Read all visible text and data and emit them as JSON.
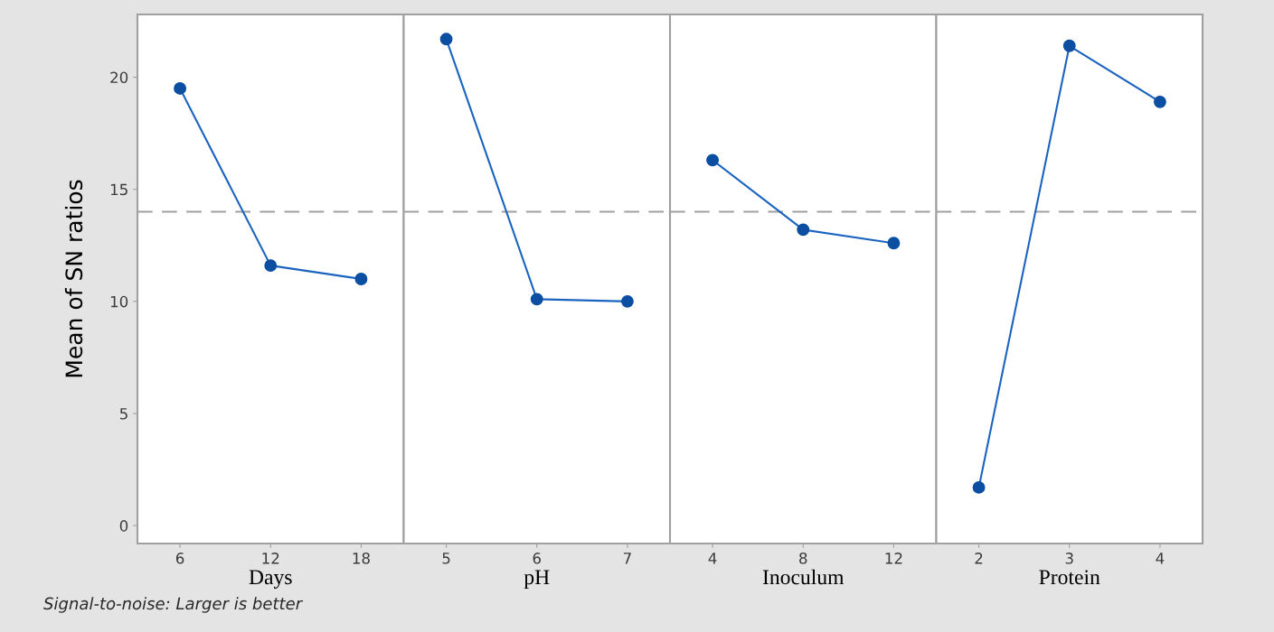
{
  "chart_data": [
    {
      "type": "line",
      "xlabel": "Days",
      "ylabel": "Mean of SN ratios",
      "categories": [
        "6",
        "12",
        "18"
      ],
      "series": [
        {
          "color": "#1a64c0",
          "values": [
            19.5,
            11.6,
            11.0
          ]
        }
      ],
      "ylim": [
        -0.8,
        22.8
      ],
      "yticks": [
        0,
        5,
        10,
        15,
        20
      ],
      "ref_lines": [
        {
          "axis": "y",
          "value": 14.0,
          "color": "#a0a0a0",
          "line_style": "dashed"
        }
      ],
      "marker": "circle",
      "grid": false,
      "annotations": [
        "Signal-to-noise: Larger is better"
      ]
    },
    {
      "type": "line",
      "xlabel": "pH",
      "categories": [
        "5",
        "6",
        "7"
      ],
      "series": [
        {
          "color": "#1a64c0",
          "values": [
            21.7,
            10.1,
            10.0
          ]
        }
      ],
      "ylim": [
        -0.8,
        22.8
      ],
      "yticks": [
        0,
        5,
        10,
        15,
        20
      ],
      "tick_labels": "x",
      "ref_lines": [
        {
          "axis": "y",
          "value": 14.0,
          "color": "#a0a0a0",
          "line_style": "dashed"
        }
      ],
      "marker": "circle",
      "grid": false
    },
    {
      "type": "line",
      "xlabel": "Inoculum",
      "categories": [
        "4",
        "8",
        "12"
      ],
      "series": [
        {
          "color": "#1a64c0",
          "values": [
            16.3,
            13.2,
            12.6
          ]
        }
      ],
      "ylim": [
        -0.8,
        22.8
      ],
      "yticks": [
        0,
        5,
        10,
        15,
        20
      ],
      "tick_labels": "x",
      "ref_lines": [
        {
          "axis": "y",
          "value": 14.0,
          "color": "#a0a0a0",
          "line_style": "dashed"
        }
      ],
      "marker": "circle",
      "grid": false
    },
    {
      "type": "line",
      "xlabel": "Protein",
      "categories": [
        "2",
        "3",
        "4"
      ],
      "series": [
        {
          "color": "#1a64c0",
          "values": [
            1.7,
            21.4,
            18.9
          ]
        }
      ],
      "ylim": [
        -0.8,
        22.8
      ],
      "yticks": [
        0,
        5,
        10,
        15,
        20
      ],
      "tick_labels": "x",
      "ref_lines": [
        {
          "axis": "y",
          "value": 14.0,
          "color": "#a0a0a0",
          "line_style": "dashed"
        }
      ],
      "marker": "circle",
      "grid": false
    }
  ]
}
